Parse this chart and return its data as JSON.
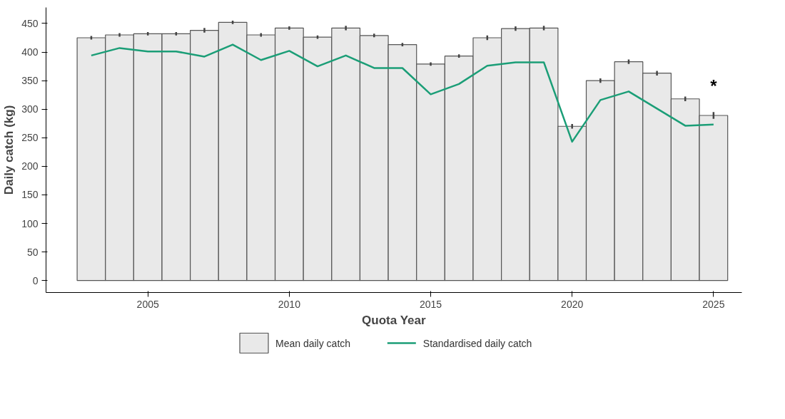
{
  "chart_data": {
    "type": "bar",
    "xlabel": "Quota Year",
    "ylabel": "Daily catch (kg)",
    "x": [
      2003,
      2004,
      2005,
      2006,
      2007,
      2008,
      2009,
      2010,
      2011,
      2012,
      2013,
      2014,
      2015,
      2016,
      2017,
      2018,
      2019,
      2020,
      2021,
      2022,
      2023,
      2024,
      2025
    ],
    "series": [
      {
        "name": "Mean daily catch",
        "color": "#e9e9e9",
        "values": [
          425,
          430,
          432,
          432,
          438,
          452,
          430,
          442,
          426,
          442,
          429,
          413,
          379,
          393,
          425,
          441,
          442,
          270,
          350,
          383,
          363,
          318,
          289
        ],
        "errors": [
          3,
          3,
          3,
          3,
          4,
          3,
          3,
          3,
          3,
          4,
          3,
          3,
          3,
          3,
          4,
          4,
          4,
          4,
          4,
          4,
          4,
          4,
          6
        ]
      },
      {
        "name": "Standardised daily catch",
        "type": "line",
        "color": "#1b9e77",
        "values": [
          394,
          407,
          401,
          401,
          392,
          413,
          386,
          402,
          375,
          394,
          372,
          372,
          326,
          344,
          376,
          382,
          382,
          243,
          316,
          331,
          301,
          271,
          273
        ]
      }
    ],
    "annotations": [
      "*"
    ],
    "xlim": [
      2001.4,
      2026
    ],
    "xticks": [
      2005,
      2010,
      2015,
      2020,
      2025
    ],
    "ylim": [
      -21,
      478
    ],
    "yticks": [
      0,
      50,
      100,
      150,
      200,
      250,
      300,
      350,
      400,
      450
    ],
    "grid": false,
    "legend": "bottom"
  }
}
